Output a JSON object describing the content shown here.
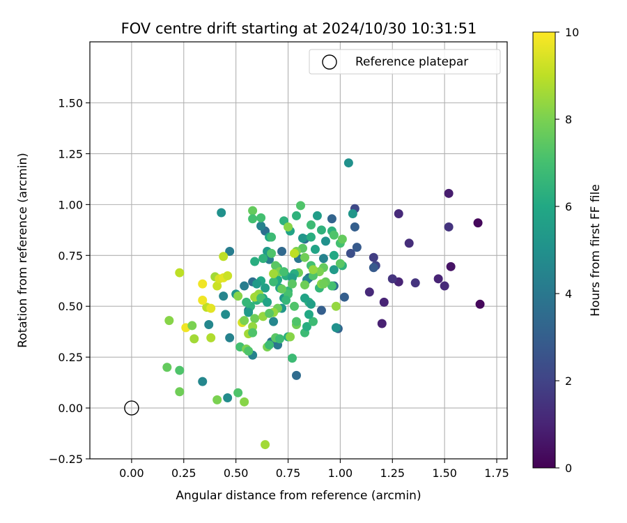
{
  "chart_data": {
    "type": "scatter",
    "title": "FOV centre drift starting at 2024/10/30 10:31:51",
    "xlabel": "Angular distance from reference (arcmin)",
    "ylabel": "Rotation from reference (arcmin)",
    "xlim": [
      -0.2,
      1.8
    ],
    "ylim": [
      -0.25,
      1.8
    ],
    "xticks": [
      0.0,
      0.25,
      0.5,
      0.75,
      1.0,
      1.25,
      1.5,
      1.75
    ],
    "xtick_labels": [
      "0.00",
      "0.25",
      "0.50",
      "0.75",
      "1.00",
      "1.25",
      "1.50",
      "1.75"
    ],
    "yticks": [
      -0.25,
      0.0,
      0.25,
      0.5,
      0.75,
      1.0,
      1.25,
      1.5
    ],
    "ytick_labels": [
      "−0.25",
      "0.00",
      "0.25",
      "0.50",
      "0.75",
      "1.00",
      "1.25",
      "1.50"
    ],
    "grid": true,
    "legend": {
      "placement": "top-right",
      "entries": [
        "Reference platepar"
      ]
    },
    "reference_point": {
      "x": 0.0,
      "y": 0.0,
      "label": "Reference platepar"
    },
    "colorbar": {
      "label": "Hours from first FF file",
      "colormap": "viridis",
      "range": [
        0,
        10
      ],
      "ticks": [
        0,
        2,
        4,
        6,
        8,
        10
      ],
      "tick_labels": [
        "0",
        "2",
        "4",
        "6",
        "8",
        "10"
      ]
    },
    "colormap_stops": [
      "#440154",
      "#482475",
      "#414487",
      "#355f8d",
      "#2a788e",
      "#21918c",
      "#22a884",
      "#44bf70",
      "#7ad151",
      "#bddf26",
      "#fde725"
    ],
    "points": [
      [
        1.66,
        0.91,
        0.2
      ],
      [
        1.67,
        0.51,
        0.2
      ],
      [
        1.52,
        1.055,
        0.8
      ],
      [
        1.52,
        0.89,
        1.5
      ],
      [
        1.53,
        0.695,
        0.5
      ],
      [
        1.47,
        0.635,
        1.0
      ],
      [
        1.5,
        0.6,
        1.2
      ],
      [
        1.33,
        0.81,
        1.3
      ],
      [
        1.36,
        0.615,
        1.5
      ],
      [
        1.28,
        0.955,
        1.2
      ],
      [
        1.28,
        0.62,
        1.0
      ],
      [
        1.25,
        0.635,
        1.5
      ],
      [
        1.16,
        0.74,
        1.8
      ],
      [
        1.17,
        0.7,
        2.0
      ],
      [
        1.16,
        0.69,
        2.8
      ],
      [
        1.14,
        0.57,
        1.2
      ],
      [
        1.21,
        0.52,
        1.0
      ],
      [
        1.2,
        0.415,
        0.9
      ],
      [
        1.07,
        0.98,
        2.2
      ],
      [
        1.07,
        0.89,
        3.0
      ],
      [
        1.08,
        0.79,
        2.8
      ],
      [
        1.05,
        0.76,
        2.4
      ],
      [
        0.96,
        0.93,
        3.2
      ],
      [
        1.06,
        0.955,
        5.2
      ],
      [
        1.04,
        1.205,
        5.0
      ],
      [
        1.02,
        0.545,
        3.0
      ],
      [
        0.99,
        0.39,
        3.2
      ],
      [
        0.98,
        0.395,
        5.0
      ],
      [
        0.91,
        0.48,
        3.0
      ],
      [
        0.92,
        0.735,
        4.4
      ],
      [
        0.8,
        0.735,
        4.0
      ],
      [
        0.83,
        0.83,
        3.6
      ],
      [
        0.88,
        0.78,
        5.8
      ],
      [
        0.85,
        0.64,
        3.4
      ],
      [
        0.97,
        0.6,
        3.6
      ],
      [
        0.89,
        0.945,
        5.5
      ],
      [
        0.84,
        0.63,
        4.6
      ],
      [
        0.79,
        0.16,
        3.5
      ],
      [
        0.7,
        0.31,
        4.0
      ],
      [
        0.67,
        0.325,
        3.8
      ],
      [
        0.72,
        0.77,
        3.4
      ],
      [
        0.64,
        0.87,
        3.6
      ],
      [
        0.62,
        0.895,
        4.4
      ],
      [
        0.58,
        0.62,
        3.6
      ],
      [
        0.56,
        0.48,
        3.8
      ],
      [
        0.54,
        0.6,
        4.2
      ],
      [
        0.5,
        0.56,
        5.2
      ],
      [
        0.47,
        0.77,
        4.2
      ],
      [
        0.43,
        0.96,
        5.0
      ],
      [
        0.44,
        0.55,
        4.5
      ],
      [
        0.45,
        0.46,
        4.8
      ],
      [
        0.37,
        0.41,
        4.6
      ],
      [
        0.34,
        0.13,
        4.6
      ],
      [
        0.46,
        0.05,
        4.8
      ],
      [
        0.47,
        0.345,
        4.4
      ],
      [
        0.58,
        0.26,
        4.4
      ],
      [
        0.68,
        0.425,
        4.6
      ],
      [
        0.72,
        0.49,
        5.2
      ],
      [
        0.66,
        0.73,
        4.2
      ],
      [
        0.65,
        0.77,
        5.4
      ],
      [
        0.66,
        0.84,
        6.0
      ],
      [
        0.7,
        0.69,
        6.6
      ],
      [
        0.74,
        0.65,
        6.2
      ],
      [
        0.73,
        0.92,
        6.4
      ],
      [
        0.79,
        0.945,
        6.4
      ],
      [
        0.81,
        0.995,
        7.2
      ],
      [
        0.76,
        0.87,
        5.8
      ],
      [
        0.82,
        0.835,
        5.2
      ],
      [
        0.86,
        0.84,
        6.2
      ],
      [
        0.86,
        0.9,
        6.8
      ],
      [
        0.91,
        0.875,
        6.4
      ],
      [
        0.93,
        0.82,
        5.0
      ],
      [
        0.96,
        0.87,
        6.4
      ],
      [
        0.97,
        0.85,
        7.2
      ],
      [
        1.0,
        0.81,
        7.0
      ],
      [
        1.01,
        0.83,
        7.6
      ],
      [
        1.01,
        0.7,
        6.4
      ],
      [
        0.97,
        0.75,
        6.0
      ],
      [
        0.97,
        0.68,
        5.4
      ],
      [
        0.96,
        0.6,
        7.0
      ],
      [
        0.93,
        0.62,
        7.6
      ],
      [
        0.9,
        0.59,
        6.6
      ],
      [
        0.92,
        0.69,
        7.6
      ],
      [
        0.9,
        0.67,
        8.0
      ],
      [
        0.87,
        0.65,
        7.2
      ],
      [
        0.86,
        0.7,
        7.0
      ],
      [
        0.83,
        0.74,
        7.8
      ],
      [
        0.82,
        0.785,
        7.4
      ],
      [
        0.8,
        0.665,
        7.8
      ],
      [
        0.78,
        0.66,
        6.2
      ],
      [
        0.77,
        0.64,
        5.6
      ],
      [
        0.75,
        0.575,
        6.6
      ],
      [
        0.73,
        0.54,
        5.2
      ],
      [
        0.7,
        0.63,
        6.0
      ],
      [
        0.71,
        0.59,
        5.8
      ],
      [
        0.69,
        0.7,
        7.4
      ],
      [
        0.68,
        0.62,
        6.8
      ],
      [
        0.63,
        0.54,
        6.0
      ],
      [
        0.64,
        0.59,
        5.6
      ],
      [
        0.6,
        0.53,
        6.4
      ],
      [
        0.6,
        0.55,
        9.0
      ],
      [
        0.61,
        0.56,
        8.4
      ],
      [
        0.59,
        0.545,
        8.6
      ],
      [
        0.62,
        0.54,
        7.0
      ],
      [
        0.57,
        0.5,
        6.4
      ],
      [
        0.55,
        0.52,
        6.6
      ],
      [
        0.56,
        0.47,
        5.4
      ],
      [
        0.59,
        0.44,
        7.8
      ],
      [
        0.56,
        0.365,
        8.6
      ],
      [
        0.58,
        0.4,
        8.4
      ],
      [
        0.58,
        0.37,
        7.2
      ],
      [
        0.53,
        0.42,
        9.4
      ],
      [
        0.54,
        0.43,
        8.0
      ],
      [
        0.52,
        0.3,
        7.0
      ],
      [
        0.55,
        0.29,
        8.0
      ],
      [
        0.56,
        0.28,
        7.2
      ],
      [
        0.63,
        0.45,
        8.4
      ],
      [
        0.65,
        0.3,
        8.0
      ],
      [
        0.66,
        0.31,
        6.8
      ],
      [
        0.69,
        0.345,
        7.4
      ],
      [
        0.71,
        0.34,
        6.8
      ],
      [
        0.75,
        0.35,
        6.2
      ],
      [
        0.76,
        0.35,
        8.2
      ],
      [
        0.77,
        0.245,
        6.8
      ],
      [
        0.79,
        0.41,
        7.8
      ],
      [
        0.79,
        0.425,
        7.2
      ],
      [
        0.83,
        0.37,
        6.8
      ],
      [
        0.84,
        0.4,
        6.2
      ],
      [
        0.87,
        0.425,
        6.8
      ],
      [
        0.85,
        0.46,
        6.0
      ],
      [
        0.85,
        0.52,
        6.4
      ],
      [
        0.83,
        0.54,
        5.8
      ],
      [
        0.86,
        0.51,
        5.6
      ],
      [
        0.78,
        0.5,
        7.2
      ],
      [
        0.75,
        0.56,
        7.0
      ],
      [
        0.74,
        0.53,
        6.6
      ],
      [
        0.7,
        0.49,
        7.8
      ],
      [
        0.68,
        0.47,
        8.4
      ],
      [
        0.66,
        0.465,
        7.4
      ],
      [
        0.65,
        0.52,
        5.8
      ],
      [
        0.62,
        0.625,
        6.0
      ],
      [
        0.6,
        0.61,
        5.4
      ],
      [
        0.58,
        0.97,
        7.6
      ],
      [
        0.58,
        0.93,
        7.0
      ],
      [
        0.62,
        0.935,
        7.0
      ],
      [
        0.63,
        0.735,
        6.4
      ],
      [
        0.59,
        0.72,
        6.2
      ],
      [
        0.67,
        0.76,
        7.2
      ],
      [
        0.67,
        0.84,
        6.8
      ],
      [
        0.71,
        0.67,
        8.0
      ],
      [
        0.68,
        0.66,
        8.6
      ],
      [
        0.72,
        0.585,
        7.6
      ],
      [
        0.73,
        0.67,
        7.0
      ],
      [
        0.77,
        0.61,
        7.4
      ],
      [
        0.79,
        0.77,
        8.0
      ],
      [
        0.78,
        0.76,
        9.0
      ],
      [
        0.75,
        0.89,
        8.2
      ],
      [
        0.83,
        0.605,
        7.8
      ],
      [
        0.87,
        0.68,
        8.4
      ],
      [
        0.91,
        0.61,
        8.2
      ],
      [
        0.92,
        0.61,
        7.8
      ],
      [
        0.98,
        0.5,
        8.4
      ],
      [
        1.0,
        0.71,
        7.4
      ],
      [
        0.38,
        0.345,
        8.8
      ],
      [
        0.36,
        0.495,
        9.0
      ],
      [
        0.4,
        0.645,
        8.6
      ],
      [
        0.44,
        0.745,
        9.0
      ],
      [
        0.41,
        0.6,
        9.2
      ],
      [
        0.42,
        0.635,
        9.4
      ],
      [
        0.44,
        0.64,
        9.6
      ],
      [
        0.46,
        0.65,
        9.2
      ],
      [
        0.51,
        0.55,
        8.2
      ],
      [
        0.34,
        0.61,
        9.8
      ],
      [
        0.34,
        0.53,
        9.8
      ],
      [
        0.38,
        0.49,
        9.6
      ],
      [
        0.26,
        0.395,
        9.8
      ],
      [
        0.29,
        0.405,
        8.0
      ],
      [
        0.3,
        0.34,
        8.6
      ],
      [
        0.23,
        0.665,
        9.0
      ],
      [
        0.18,
        0.43,
        8.2
      ],
      [
        0.17,
        0.2,
        7.6
      ],
      [
        0.23,
        0.185,
        7.2
      ],
      [
        0.23,
        0.08,
        7.8
      ],
      [
        0.41,
        0.04,
        8.0
      ],
      [
        0.51,
        0.075,
        7.2
      ],
      [
        0.54,
        0.03,
        8.2
      ],
      [
        0.64,
        -0.18,
        8.6
      ]
    ]
  }
}
